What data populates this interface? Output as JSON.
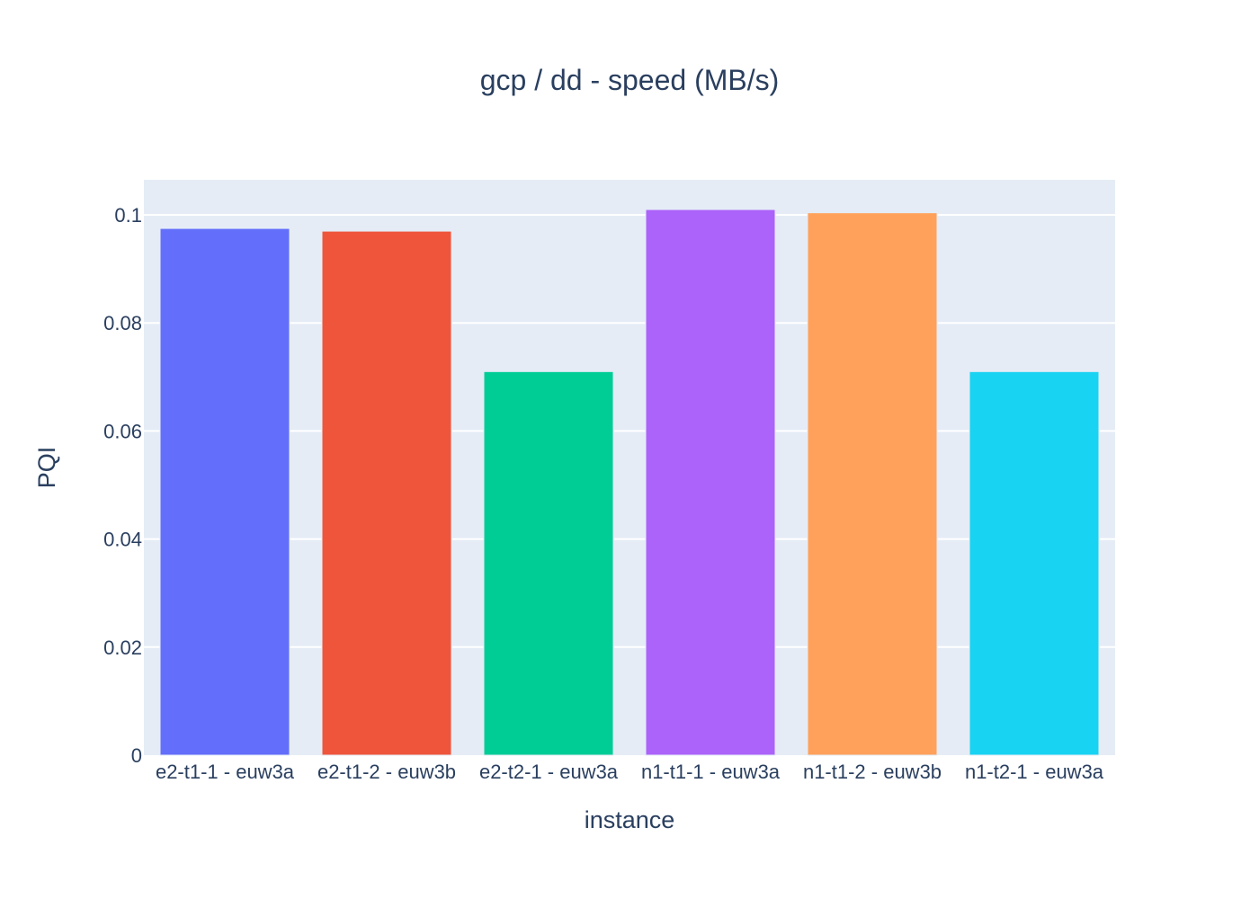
{
  "chart_data": {
    "type": "bar",
    "title": "gcp / dd - speed (MB/s)",
    "xlabel": "instance",
    "ylabel": "PQI",
    "categories": [
      "e2-t1-1 - euw3a",
      "e2-t1-2 - euw3b",
      "e2-t2-1 - euw3a",
      "n1-t1-1 - euw3a",
      "n1-t1-2 - euw3b",
      "n1-t2-1 - euw3a"
    ],
    "values": [
      0.0975,
      0.097,
      0.071,
      0.101,
      0.1004,
      0.071
    ],
    "colors": [
      "#636efa",
      "#EF553B",
      "#00cc96",
      "#ab63fa",
      "#FFA15A",
      "#19d3f3"
    ],
    "ylim": [
      0,
      0.1065
    ],
    "yticks": [
      0,
      0.02,
      0.04,
      0.06,
      0.08,
      0.1
    ],
    "ytick_labels": [
      "0",
      "0.02",
      "0.04",
      "0.06",
      "0.08",
      "0.1"
    ],
    "grid": true,
    "plot_background": "#E5ECF6",
    "gridline_color": "#ffffff",
    "text_color": "#2a3f5f"
  }
}
